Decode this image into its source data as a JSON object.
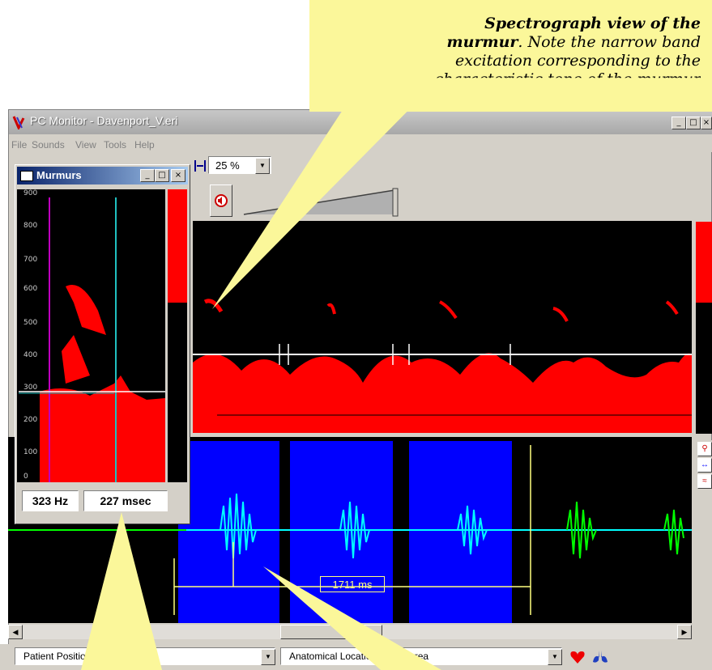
{
  "callout": {
    "line1_bold": "Spectrograph view of the",
    "line2_bold": "murmur",
    "line2_rest": ". Note the narrow band",
    "line3": "excitation corresponding to the",
    "line4": "characteristic tone of the murmur"
  },
  "window": {
    "title": "PC Monitor - Davenport_V.eri",
    "minimize": "_",
    "maximize": "□",
    "close": "×"
  },
  "menu": [
    "File",
    "Sounds",
    "View",
    "Tools",
    "Help"
  ],
  "toolbar": {
    "zoom_value": "25 %",
    "speaker_icon": "speaker-mute-icon"
  },
  "murmurs_dialog": {
    "title": "Murmurs",
    "y_ticks": [
      "900",
      "800",
      "700",
      "600",
      "500",
      "400",
      "300",
      "200",
      "100",
      "0"
    ],
    "freq_readout": "323 Hz",
    "time_readout": "227 msec"
  },
  "waveform": {
    "interval_label": "1711  ms"
  },
  "statusbar": {
    "patient_position": "Patient Position: Standing",
    "anatomical_location": "Anatomical Location: Aortic area",
    "heart_icon": "heart-icon",
    "lungs_icon": "lungs-icon"
  },
  "colors": {
    "spectrogram": "#ff0000",
    "murmur_highlight": "#0000ff",
    "selected_waveform": "#00ffff",
    "waveform": "#00ff00",
    "callout_bg": "#fbf79a"
  }
}
